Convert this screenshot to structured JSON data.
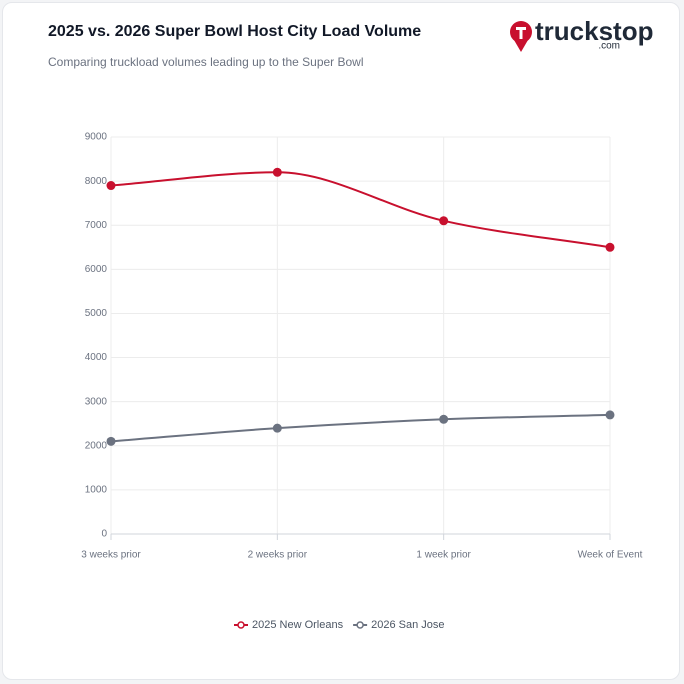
{
  "logo": {
    "name": "truckstop",
    "suffix": ".com"
  },
  "chart_data": {
    "type": "line",
    "title": "2025 vs. 2026 Super Bowl Host City Load Volume",
    "subtitle": "Comparing truckload volumes leading up to the Super Bowl",
    "categories": [
      "3 weeks prior",
      "2 weeks prior",
      "1 week prior",
      "Week of Event"
    ],
    "series": [
      {
        "name": "2025 New Orleans",
        "color": "#c8102e",
        "values": [
          7900,
          8200,
          7100,
          6500
        ]
      },
      {
        "name": "2026 San Jose",
        "color": "#6b7280",
        "values": [
          2100,
          2400,
          2600,
          2700
        ]
      }
    ],
    "ylim": [
      0,
      9000
    ],
    "yticks": [
      0,
      1000,
      2000,
      3000,
      4000,
      5000,
      6000,
      7000,
      8000,
      9000
    ],
    "grid": true,
    "legend": "bottom"
  }
}
